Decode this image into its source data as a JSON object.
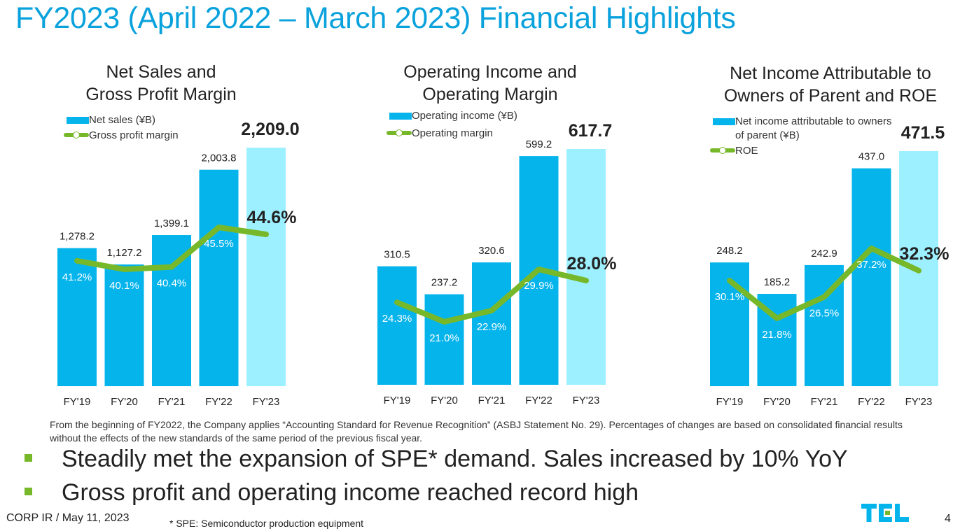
{
  "slide": {
    "title": "FY2023 (April 2022 – March 2023) Financial Highlights",
    "footnote": "From the beginning of FY2022, the Company applies “Accounting Standard for Revenue Recognition”  (ASBJ Statement No. 29). Percentages of changes are based on consolidated financial results without the effects of the new standards of the same period of the previous fiscal year.",
    "bullets": [
      "Steadily met the expansion of SPE* demand. Sales increased by 10% YoY",
      "Gross profit and operating income reached record high"
    ],
    "footer_left": "CORP IR / May 11, 2023",
    "footer_note": "* SPE: Semiconductor production equipment",
    "logo_text": "TEL",
    "page_number": "4",
    "colors": {
      "title": "#0aa2dc",
      "bar": "#06b4ec",
      "bar_forecast": "#9df0ff",
      "line": "#76b82a"
    }
  },
  "chart_data": [
    {
      "type": "bar",
      "title": "Net Sales and Gross Profit Margin",
      "title_lines": [
        "Net Sales and",
        "Gross Profit Margin"
      ],
      "categories": [
        "FY'19",
        "FY'20",
        "FY'21",
        "FY'22",
        "FY'23"
      ],
      "series": [
        {
          "name": "Net sales (¥B)",
          "type": "bar",
          "values": [
            1278.2,
            1127.2,
            1399.1,
            2003.8,
            2209.0
          ],
          "labels": [
            "1,278.2",
            "1,127.2",
            "1,399.1",
            "2,003.8",
            "2,209.0"
          ]
        },
        {
          "name": "Gross profit margin",
          "type": "line",
          "values": [
            41.2,
            40.1,
            40.4,
            45.5,
            44.6
          ],
          "labels": [
            "41.2%",
            "40.1%",
            "40.4%",
            "45.5%",
            "44.6%"
          ]
        }
      ],
      "legend": [
        "Net sales (¥B)",
        "Gross profit margin"
      ],
      "highlight_last": true,
      "ylim": [
        0,
        2209.0
      ],
      "line_ylim": [
        30,
        55
      ]
    },
    {
      "type": "bar",
      "title": "Operating Income and Operating Margin",
      "title_lines": [
        "Operating Income and",
        "Operating Margin"
      ],
      "categories": [
        "FY'19",
        "FY'20",
        "FY'21",
        "FY'22",
        "FY'23"
      ],
      "series": [
        {
          "name": "Operating income (¥B)",
          "type": "bar",
          "values": [
            310.5,
            237.2,
            320.6,
            599.2,
            617.7
          ],
          "labels": [
            "310.5",
            "237.2",
            "320.6",
            "599.2",
            "617.7"
          ]
        },
        {
          "name": "Operating margin",
          "type": "line",
          "values": [
            24.3,
            21.0,
            22.9,
            29.9,
            28.0
          ],
          "labels": [
            "24.3%",
            "21.0%",
            "22.9%",
            "29.9%",
            "28.0%"
          ]
        }
      ],
      "legend": [
        "Operating income (¥B)",
        "Operating margin"
      ],
      "highlight_last": true,
      "ylim": [
        0,
        617.7
      ],
      "line_ylim": [
        0,
        50
      ]
    },
    {
      "type": "bar",
      "title": "Net Income Attributable to Owners of Parent and ROE",
      "title_lines": [
        "Net Income Attributable to",
        "Owners of Parent and ROE"
      ],
      "categories": [
        "FY'19",
        "FY'20",
        "FY'21",
        "FY'22",
        "FY'23"
      ],
      "series": [
        {
          "name": "Net  income attributable to owners of parent (¥B)",
          "type": "bar",
          "values": [
            248.2,
            185.2,
            242.9,
            437.0,
            471.5
          ],
          "labels": [
            "248.2",
            "185.2",
            "242.9",
            "437.0",
            "471.5"
          ]
        },
        {
          "name": "ROE",
          "type": "line",
          "values": [
            30.1,
            21.8,
            26.5,
            37.2,
            32.3
          ],
          "labels": [
            "30.1%",
            "21.8%",
            "26.5%",
            "37.2%",
            "32.3%"
          ]
        }
      ],
      "legend": [
        "Net  income attributable to owners",
        "of parent (¥B)",
        "ROE"
      ],
      "highlight_last": true,
      "ylim": [
        0,
        471.5
      ],
      "line_ylim": [
        0,
        60
      ]
    }
  ]
}
